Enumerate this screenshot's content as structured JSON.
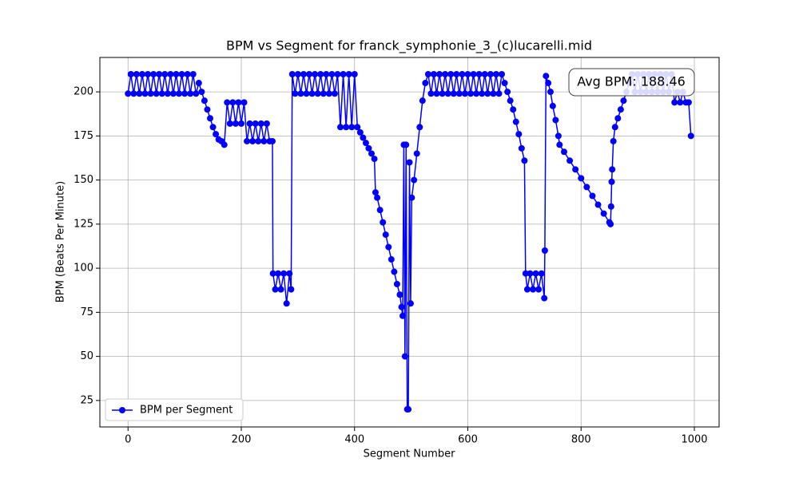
{
  "chart_data": {
    "type": "line",
    "title": "BPM vs Segment for franck_symphonie_3_(c)lucarelli.mid",
    "x_label": "Segment Number",
    "y_label": "BPM (Beats Per Minute)",
    "annotation": "Avg BPM: 188.46",
    "xlim": [
      -49.7,
      1043.7
    ],
    "xticks": [
      0,
      200,
      400,
      600,
      800,
      1000
    ],
    "ylim": [
      10.0,
      219.5
    ],
    "yticks": [
      25,
      50,
      75,
      100,
      125,
      150,
      175,
      200
    ],
    "grid": true,
    "legend": "lower left",
    "x": [
      0,
      5,
      10,
      15,
      20,
      25,
      30,
      35,
      40,
      45,
      50,
      55,
      60,
      65,
      70,
      75,
      80,
      85,
      90,
      95,
      100,
      105,
      110,
      115,
      120,
      125,
      130,
      135,
      140,
      145,
      150,
      155,
      160,
      165,
      170,
      175,
      180,
      185,
      190,
      195,
      200,
      205,
      210,
      215,
      220,
      225,
      230,
      235,
      240,
      245,
      250,
      255,
      256,
      260,
      265,
      270,
      275,
      280,
      285,
      288,
      290,
      295,
      300,
      305,
      310,
      315,
      320,
      325,
      330,
      335,
      340,
      345,
      350,
      355,
      360,
      365,
      370,
      375,
      380,
      385,
      390,
      395,
      400,
      405,
      410,
      415,
      420,
      425,
      430,
      435,
      437,
      440,
      445,
      450,
      455,
      460,
      465,
      470,
      475,
      480,
      483,
      485,
      487,
      489,
      491,
      493,
      495,
      497,
      499,
      501,
      505,
      510,
      515,
      520,
      525,
      530,
      535,
      540,
      545,
      550,
      555,
      560,
      565,
      570,
      575,
      580,
      585,
      590,
      595,
      600,
      605,
      610,
      615,
      620,
      625,
      630,
      635,
      640,
      645,
      650,
      655,
      660,
      665,
      670,
      675,
      680,
      685,
      690,
      695,
      700,
      702,
      705,
      710,
      715,
      720,
      725,
      730,
      735,
      736,
      738,
      742,
      746,
      750,
      755,
      760,
      762,
      770,
      780,
      790,
      800,
      810,
      820,
      830,
      840,
      850,
      852,
      853,
      854,
      855,
      857,
      860,
      865,
      870,
      875,
      880,
      885,
      890,
      895,
      900,
      905,
      910,
      915,
      920,
      925,
      930,
      935,
      940,
      945,
      950,
      955,
      960,
      965,
      970,
      975,
      980,
      985,
      990,
      994
    ],
    "series": [
      {
        "name": "BPM per Segment",
        "color": "#0000ff",
        "values": [
          199,
          210,
          199,
          210,
          199,
          210,
          199,
          210,
          199,
          210,
          199,
          210,
          199,
          210,
          199,
          210,
          199,
          210,
          199,
          210,
          199,
          210,
          199,
          210,
          199,
          205,
          200,
          195,
          190,
          185,
          180,
          176,
          173,
          172,
          170,
          194,
          182,
          194,
          182,
          194,
          182,
          194,
          172,
          182,
          172,
          182,
          172,
          182,
          172,
          182,
          172,
          172,
          97,
          88,
          97,
          88,
          97,
          80,
          97,
          88,
          210,
          199,
          210,
          199,
          210,
          199,
          210,
          199,
          210,
          199,
          210,
          199,
          210,
          199,
          210,
          199,
          210,
          180,
          210,
          180,
          210,
          180,
          210,
          180,
          177,
          174,
          171,
          168,
          165,
          162,
          143,
          140,
          133,
          126,
          119,
          112,
          105,
          98,
          91,
          85,
          78,
          73,
          170,
          50,
          170,
          20,
          20,
          160,
          80,
          140,
          150,
          165,
          180,
          195,
          205,
          210,
          199,
          210,
          199,
          210,
          199,
          210,
          199,
          210,
          199,
          210,
          199,
          210,
          199,
          210,
          199,
          210,
          199,
          210,
          199,
          210,
          199,
          210,
          199,
          210,
          199,
          210,
          205,
          200,
          195,
          190,
          183,
          176,
          168,
          161,
          97,
          88,
          97,
          88,
          97,
          88,
          97,
          83,
          110,
          209,
          205,
          200,
          192,
          184,
          175,
          170,
          166,
          161,
          156,
          151,
          146,
          141,
          136,
          131,
          126,
          125,
          135,
          149,
          156,
          172,
          180,
          185,
          190,
          195,
          200,
          205,
          210,
          200,
          210,
          200,
          210,
          200,
          210,
          200,
          210,
          200,
          210,
          200,
          210,
          200,
          210,
          194,
          200,
          194,
          200,
          194,
          194,
          175
        ]
      }
    ]
  }
}
